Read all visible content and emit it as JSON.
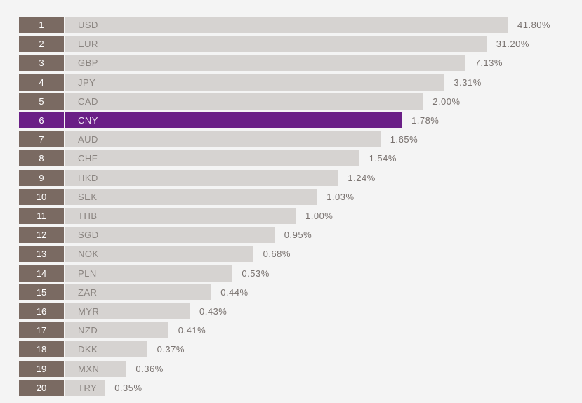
{
  "colors": {
    "bar": "#d6d3d1",
    "rank": "#7a6a62",
    "highlight": "#6a1f86"
  },
  "chart_data": {
    "type": "bar",
    "orientation": "horizontal",
    "title": "",
    "highlight_rank": 6,
    "xlim": [
      0,
      41.8
    ],
    "grid": false,
    "legend": "none",
    "ranks": [
      "1",
      "2",
      "3",
      "4",
      "5",
      "6",
      "7",
      "8",
      "9",
      "10",
      "11",
      "12",
      "13",
      "14",
      "15",
      "16",
      "17",
      "18",
      "19",
      "20"
    ],
    "categories": [
      "USD",
      "EUR",
      "GBP",
      "JPY",
      "CAD",
      "CNY",
      "AUD",
      "CHF",
      "HKD",
      "SEK",
      "THB",
      "SGD",
      "NOK",
      "PLN",
      "ZAR",
      "MYR",
      "NZD",
      "DKK",
      "MXN",
      "TRY"
    ],
    "values": [
      41.8,
      31.2,
      7.13,
      3.31,
      2.0,
      1.78,
      1.65,
      1.54,
      1.24,
      1.03,
      1.0,
      0.95,
      0.68,
      0.53,
      0.44,
      0.43,
      0.41,
      0.37,
      0.36,
      0.35
    ],
    "labels": [
      "41.80%",
      "31.20%",
      "7.13%",
      "3.31%",
      "2.00%",
      "1.78%",
      "1.65%",
      "1.54%",
      "1.24%",
      "1.03%",
      "1.00%",
      "0.95%",
      "0.68%",
      "0.53%",
      "0.44%",
      "0.43%",
      "0.41%",
      "0.37%",
      "0.36%",
      "0.35%"
    ]
  }
}
